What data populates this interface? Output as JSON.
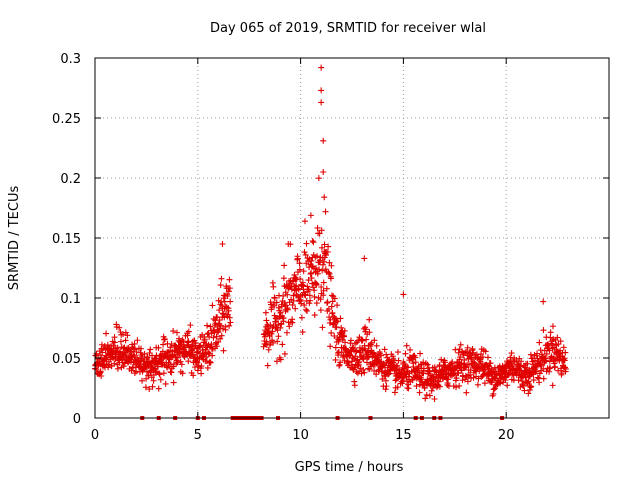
{
  "chart_data": {
    "type": "scatter",
    "title": "Day 065 of 2019, SRMTID for receiver wlal",
    "xlabel": "GPS time / hours",
    "ylabel": "SRMTID / TECUs",
    "xlim": [
      0,
      25
    ],
    "ylim": [
      0,
      0.3
    ],
    "xticks": [
      0,
      5,
      10,
      15,
      20
    ],
    "xtick_labels": [
      "0",
      "5",
      "10",
      "15",
      "20"
    ],
    "yticks": [
      0,
      0.05,
      0.1,
      0.15,
      0.2,
      0.25,
      0.3
    ],
    "ytick_labels": [
      "0",
      "0.05",
      "0.1",
      "0.15",
      "0.2",
      "0.25",
      "0.3"
    ],
    "grid": true,
    "marker": "+",
    "color": "#e00000",
    "series": [
      {
        "name": "SRMTID",
        "profile_x": [
          0.0,
          0.5,
          1.0,
          1.5,
          2.0,
          2.5,
          3.0,
          3.5,
          4.0,
          4.5,
          5.0,
          5.5,
          6.0,
          6.4,
          8.2,
          8.8,
          9.3,
          9.8,
          10.2,
          10.6,
          10.9,
          11.1,
          11.4,
          11.8,
          12.3,
          12.8,
          13.3,
          13.8,
          14.3,
          14.8,
          15.3,
          15.8,
          16.3,
          16.8,
          17.3,
          17.8,
          18.3,
          18.8,
          19.3,
          19.8,
          20.3,
          20.8,
          21.3,
          21.8,
          22.3,
          22.9
        ],
        "profile_mean": [
          0.045,
          0.05,
          0.055,
          0.055,
          0.05,
          0.042,
          0.045,
          0.05,
          0.055,
          0.058,
          0.05,
          0.058,
          0.075,
          0.095,
          0.07,
          0.08,
          0.095,
          0.105,
          0.11,
          0.115,
          0.13,
          0.14,
          0.1,
          0.065,
          0.055,
          0.05,
          0.06,
          0.045,
          0.04,
          0.035,
          0.04,
          0.035,
          0.03,
          0.035,
          0.04,
          0.045,
          0.045,
          0.045,
          0.035,
          0.035,
          0.045,
          0.035,
          0.04,
          0.05,
          0.058,
          0.045
        ],
        "profile_spread": [
          0.015,
          0.018,
          0.02,
          0.018,
          0.015,
          0.015,
          0.016,
          0.018,
          0.018,
          0.018,
          0.016,
          0.02,
          0.028,
          0.03,
          0.025,
          0.03,
          0.035,
          0.035,
          0.04,
          0.05,
          0.07,
          0.06,
          0.035,
          0.022,
          0.018,
          0.018,
          0.025,
          0.016,
          0.015,
          0.015,
          0.018,
          0.016,
          0.014,
          0.014,
          0.015,
          0.016,
          0.016,
          0.016,
          0.014,
          0.014,
          0.016,
          0.014,
          0.016,
          0.018,
          0.02,
          0.016
        ],
        "data_gaps_hours": [
          [
            6.6,
            8.2
          ]
        ],
        "peak_values": [
          {
            "x": 11.0,
            "y": 0.292
          },
          {
            "x": 11.0,
            "y": 0.273
          },
          {
            "x": 11.0,
            "y": 0.263
          },
          {
            "x": 11.1,
            "y": 0.231
          },
          {
            "x": 11.1,
            "y": 0.205
          },
          {
            "x": 11.15,
            "y": 0.184
          },
          {
            "x": 6.2,
            "y": 0.145
          },
          {
            "x": 9.4,
            "y": 0.145
          },
          {
            "x": 13.1,
            "y": 0.133
          },
          {
            "x": 15.0,
            "y": 0.103
          },
          {
            "x": 21.8,
            "y": 0.097
          }
        ],
        "zero_markers_hours": [
          2.3,
          3.1,
          3.9,
          5.0,
          5.3,
          8.9,
          11.8,
          13.4,
          15.6,
          15.9,
          16.5,
          16.8,
          19.8
        ]
      }
    ]
  }
}
